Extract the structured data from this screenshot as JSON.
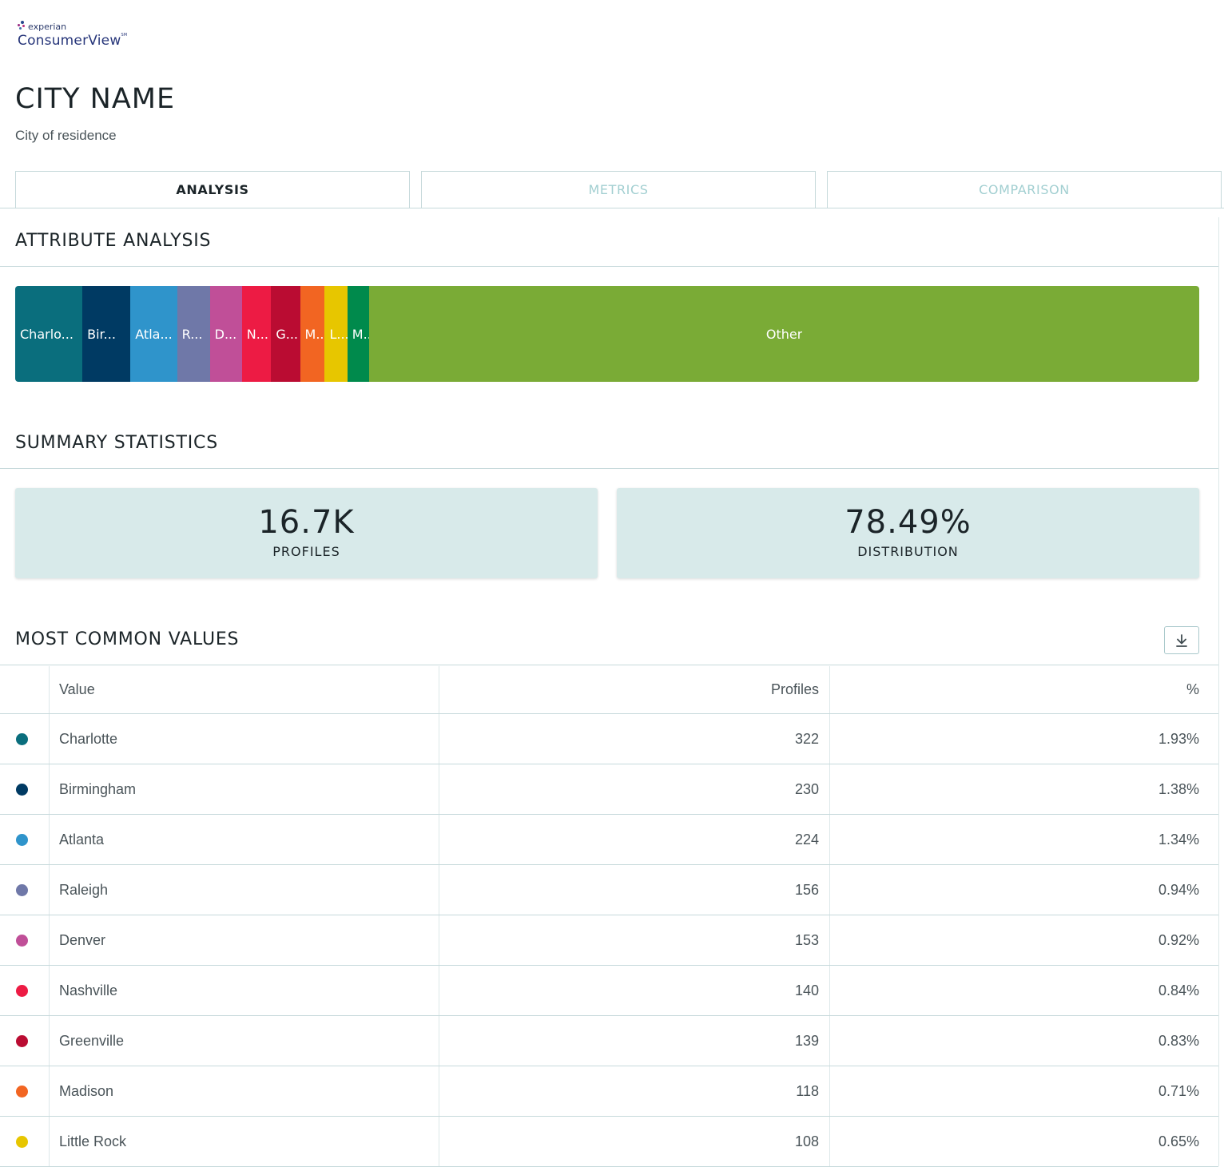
{
  "brand": {
    "small": "experian",
    "name": "ConsumerView",
    "mark": "SM"
  },
  "header": {
    "title": "CITY NAME",
    "subtitle": "City of residence"
  },
  "tabs": [
    {
      "label": "ANALYSIS",
      "active": true
    },
    {
      "label": "METRICS",
      "active": false
    },
    {
      "label": "COMPARISON",
      "active": false
    }
  ],
  "attribute_analysis": {
    "title": "ATTRIBUTE ANALYSIS",
    "segments": [
      {
        "label": "Charlo...",
        "percent": 1.93,
        "color": "#0a6e7d"
      },
      {
        "label": "Bir...",
        "percent": 1.38,
        "color": "#003a63"
      },
      {
        "label": "Atla...",
        "percent": 1.34,
        "color": "#2f94cb"
      },
      {
        "label": "R...",
        "percent": 0.94,
        "color": "#6f78a8"
      },
      {
        "label": "D...",
        "percent": 0.92,
        "color": "#c04f98"
      },
      {
        "label": "N...",
        "percent": 0.84,
        "color": "#ed1b44"
      },
      {
        "label": "G...",
        "percent": 0.83,
        "color": "#ba0c32"
      },
      {
        "label": "M...",
        "percent": 0.71,
        "color": "#f26522"
      },
      {
        "label": "L...",
        "percent": 0.65,
        "color": "#e7c600"
      },
      {
        "label": "M..",
        "percent": 0.63,
        "color": "#008a4c"
      },
      {
        "label": "Other",
        "percent": 23.83,
        "color": "#7aab36"
      }
    ]
  },
  "summary": {
    "title": "SUMMARY STATISTICS",
    "profiles": {
      "value": "16.7K",
      "label": "PROFILES"
    },
    "distribution": {
      "value": "78.49%",
      "label": "DISTRIBUTION"
    }
  },
  "most_common": {
    "title": "MOST COMMON VALUES",
    "download_icon": "download-icon",
    "columns": {
      "value": "Value",
      "profiles": "Profiles",
      "percent": "%"
    },
    "rows": [
      {
        "value": "Charlotte",
        "profiles": "322",
        "percent": "1.93%",
        "color": "#0a6e7d"
      },
      {
        "value": "Birmingham",
        "profiles": "230",
        "percent": "1.38%",
        "color": "#003a63"
      },
      {
        "value": "Atlanta",
        "profiles": "224",
        "percent": "1.34%",
        "color": "#2f94cb"
      },
      {
        "value": "Raleigh",
        "profiles": "156",
        "percent": "0.94%",
        "color": "#6f78a8"
      },
      {
        "value": "Denver",
        "profiles": "153",
        "percent": "0.92%",
        "color": "#c04f98"
      },
      {
        "value": "Nashville",
        "profiles": "140",
        "percent": "0.84%",
        "color": "#ed1b44"
      },
      {
        "value": "Greenville",
        "profiles": "139",
        "percent": "0.83%",
        "color": "#ba0c32"
      },
      {
        "value": "Madison",
        "profiles": "118",
        "percent": "0.71%",
        "color": "#f26522"
      },
      {
        "value": "Little Rock",
        "profiles": "108",
        "percent": "0.65%",
        "color": "#e7c600"
      }
    ]
  }
}
